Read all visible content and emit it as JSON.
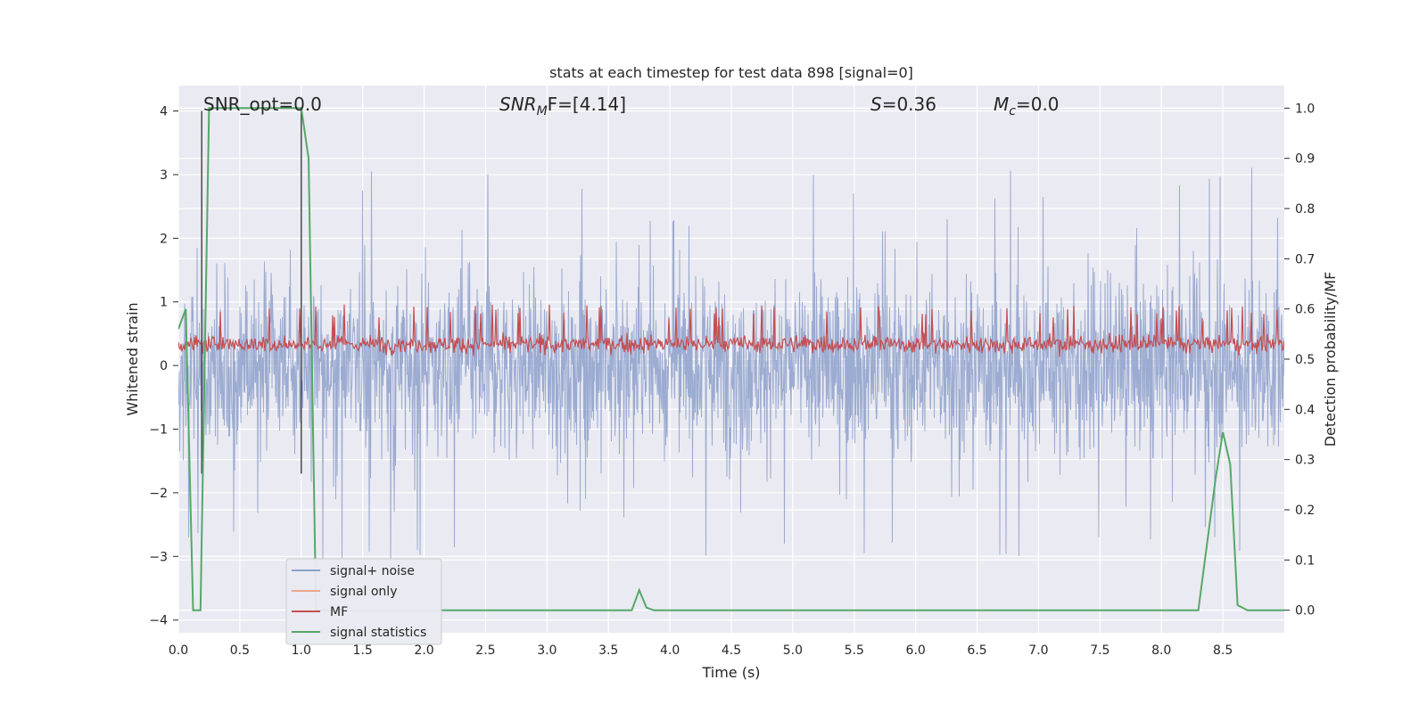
{
  "chart_data": {
    "type": "line",
    "title": "stats at each timestep for test data 898 [signal=0]",
    "xlabel": "Time (s)",
    "ylabel": "Whitened strain",
    "y2label": "Detection probability/MF",
    "xlim": [
      0,
      9.0
    ],
    "ylim": [
      -4.2,
      4.4
    ],
    "y2lim": [
      -0.045,
      1.045
    ],
    "grid": true,
    "legend_position": "lower-left",
    "x_ticks": [
      "0.0",
      "0.5",
      "1.0",
      "1.5",
      "2.0",
      "2.5",
      "3.0",
      "3.5",
      "4.0",
      "4.5",
      "5.0",
      "5.5",
      "6.0",
      "6.5",
      "7.0",
      "7.5",
      "8.0",
      "8.5"
    ],
    "x_tick_values": [
      0,
      0.5,
      1.0,
      1.5,
      2.0,
      2.5,
      3.0,
      3.5,
      4.0,
      4.5,
      5.0,
      5.5,
      6.0,
      6.5,
      7.0,
      7.5,
      8.0,
      8.5
    ],
    "y_ticks": [
      "4",
      "3",
      "2",
      "1",
      "0",
      "−1",
      "−2",
      "−3",
      "−4"
    ],
    "y_tick_values": [
      4,
      3,
      2,
      1,
      0,
      -1,
      -2,
      -3,
      -4
    ],
    "y2_ticks": [
      "1.0",
      "0.9",
      "0.8",
      "0.7",
      "0.6",
      "0.5",
      "0.4",
      "0.3",
      "0.2",
      "0.1",
      "0.0"
    ],
    "y2_tick_values": [
      1.0,
      0.9,
      0.8,
      0.7,
      0.6,
      0.5,
      0.4,
      0.3,
      0.2,
      0.1,
      0.0
    ],
    "annotations": {
      "snr_opt": "SNR_opt=0.0",
      "snr_mf_sym": "SNR",
      "snr_mf_sub": "M",
      "snr_mf_rest": "F=[4.14]",
      "s_sym": "S",
      "s_val": "=0.36",
      "mc_sym": "M",
      "mc_sub": "c",
      "mc_val": "=0.0"
    },
    "vertical_lines_x": [
      0.19,
      1.0
    ],
    "series": [
      {
        "name": "signal+ noise",
        "color": "#8da0cb",
        "noise_range": [
          -3.5,
          4.0
        ]
      },
      {
        "name": "signal only",
        "color": "#e8a88c",
        "values": []
      },
      {
        "name": "MF",
        "color": "#c44e52",
        "axis": "right",
        "mean": 0.53,
        "range": [
          0.5,
          0.58
        ]
      },
      {
        "name": "signal statistics",
        "color": "#55a868",
        "axis": "right",
        "x": [
          0.0,
          0.06,
          0.12,
          0.18,
          0.25,
          1.0,
          1.06,
          1.12,
          1.18,
          1.5,
          2.0,
          2.5,
          3.0,
          3.5,
          3.69,
          3.75,
          3.81,
          3.87,
          4.0,
          5.0,
          6.0,
          7.0,
          8.0,
          8.3,
          8.44,
          8.5,
          8.56,
          8.62,
          8.7,
          9.0
        ],
        "values": [
          0.56,
          0.6,
          0.0,
          0.0,
          1.0,
          1.0,
          0.9,
          0.0,
          0.0,
          0.0,
          0.0,
          0.0,
          0.0,
          0.0,
          0.0,
          0.04,
          0.005,
          0.0,
          0.0,
          0.0,
          0.0,
          0.0,
          0.0,
          0.0,
          0.26,
          0.355,
          0.29,
          0.01,
          0.0,
          0.0
        ]
      }
    ]
  }
}
